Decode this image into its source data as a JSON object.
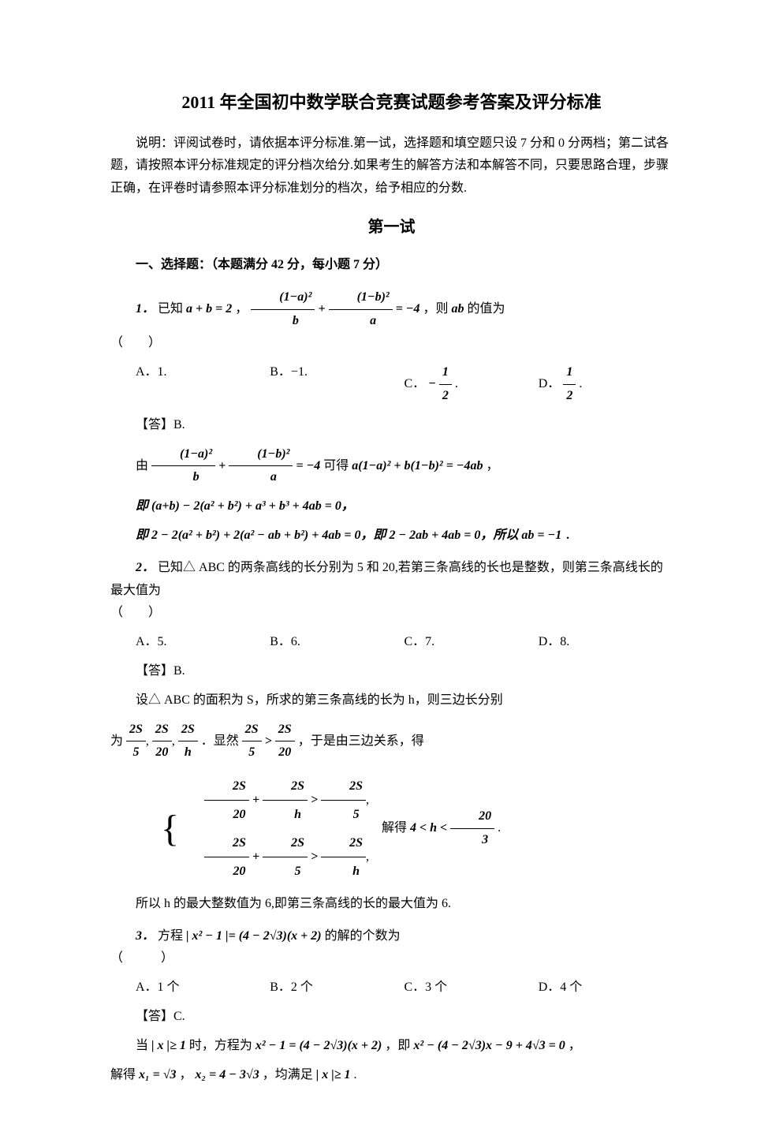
{
  "title": "2011 年全国初中数学联合竞赛试题参考答案及评分标准",
  "instructions": "说明：评阅试卷时，请依据本评分标准.第一试，选择题和填空题只设 7 分和 0 分两档；第二试各题，请按照本评分标准规定的评分档次给分.如果考生的解答方法和本解答不同，只要思路合理，步骤正确，在评卷时请参照本评分标准划分的档次，给予相应的分数.",
  "section1_title": "第一试",
  "part1_heading": "一、选择题：（本题满分 42 分，每小题 7 分）",
  "problems": {
    "p1": {
      "num": "1．",
      "text_prefix": "已知 ",
      "text_mid": "，",
      "text_suffix": "，则 ",
      "text_end": " 的值为",
      "cond1": "a + b = 2",
      "cond2_eq": "= −4",
      "ab": "ab",
      "paren": "（　　）",
      "opts": {
        "A": "A．1.",
        "B": "B．−1.",
        "C": "C．",
        "D": "D．"
      },
      "optC_val": "−",
      "optD_val": "",
      "half_num": "1",
      "half_den": "2",
      "period": ".",
      "answer": "【答】B.",
      "sol_by": "由 ",
      "sol_get": " 可得 ",
      "sol_comma": "，",
      "eq2_lhs": "a(1−a)² + b(1−b)² = −4ab",
      "sol_ie1": "即 (a+b) − 2(a² + b²) + a³ + b³ + 4ab = 0，",
      "sol_ie2_p1": "即 2 − 2(a² + b²) + 2(a² − ab + b²) + 4ab = 0，即 2 − 2ab + 4ab = 0，所以 ",
      "sol_ie2_p2": "ab = −1",
      "sol_ie2_p3": "．"
    },
    "p2": {
      "num": "2．",
      "text": "已知△ ABC 的两条高线的长分别为 5 和 20,若第三条高线的长也是整数，则第三条高线长的最大值为",
      "paren": "（　　）",
      "opts": {
        "A": "A．5.",
        "B": "B．6.",
        "C": "C．7.",
        "D": "D．8."
      },
      "answer": "【答】B.",
      "sol1": "设△ ABC 的面积为 S，所求的第三条高线的长为 h，则三边长分别",
      "sol2_prefix": "为",
      "sol2_mid": "．显然 ",
      "sol2_suffix": "，于是由三边关系，得",
      "frac_2S": "2S",
      "den5": "5",
      "den20": "20",
      "denh": "h",
      "ineq_gt": ">",
      "cases_suffix": "解得 ",
      "result": "4 < h < ",
      "r_num": "20",
      "r_den": "3",
      "sol3": "所以 h 的最大整数值为 6,即第三条高线的长的最大值为 6."
    },
    "p3": {
      "num": "3．",
      "text_prefix": "方程 ",
      "eq": "| x² − 1 |= (4 − 2√3)(x + 2)",
      "text_suffix": " 的解的个数为",
      "paren": "（　　　）",
      "opts": {
        "A": "A．1 个",
        "B": "B．2 个",
        "C": "C．3 个",
        "D": "D．4 个"
      },
      "answer": "【答】C.",
      "sol1_p1": "当 ",
      "sol1_cond": "| x |≥ 1",
      "sol1_p2": " 时，方程为 ",
      "sol1_eq1": "x² − 1 = (4 − 2√3)(x + 2)",
      "sol1_p3": "，即 ",
      "sol1_eq2": "x² − (4 − 2√3)x − 9 + 4√3 = 0",
      "sol1_p4": "，",
      "sol2_p1": "解得 ",
      "x1_lhs": "x₁ = ",
      "x1_val": "√3",
      "sol2_p2": "，",
      "x2": "x₂ = 4 − 3√3",
      "sol2_p3": "，均满足 ",
      "sol2_cond": "| x |≥ 1",
      "sol2_p4": "."
    }
  },
  "frac_1a": "(1−a)²",
  "frac_1b": "(1−b)²",
  "var_a": "a",
  "var_b": "b"
}
